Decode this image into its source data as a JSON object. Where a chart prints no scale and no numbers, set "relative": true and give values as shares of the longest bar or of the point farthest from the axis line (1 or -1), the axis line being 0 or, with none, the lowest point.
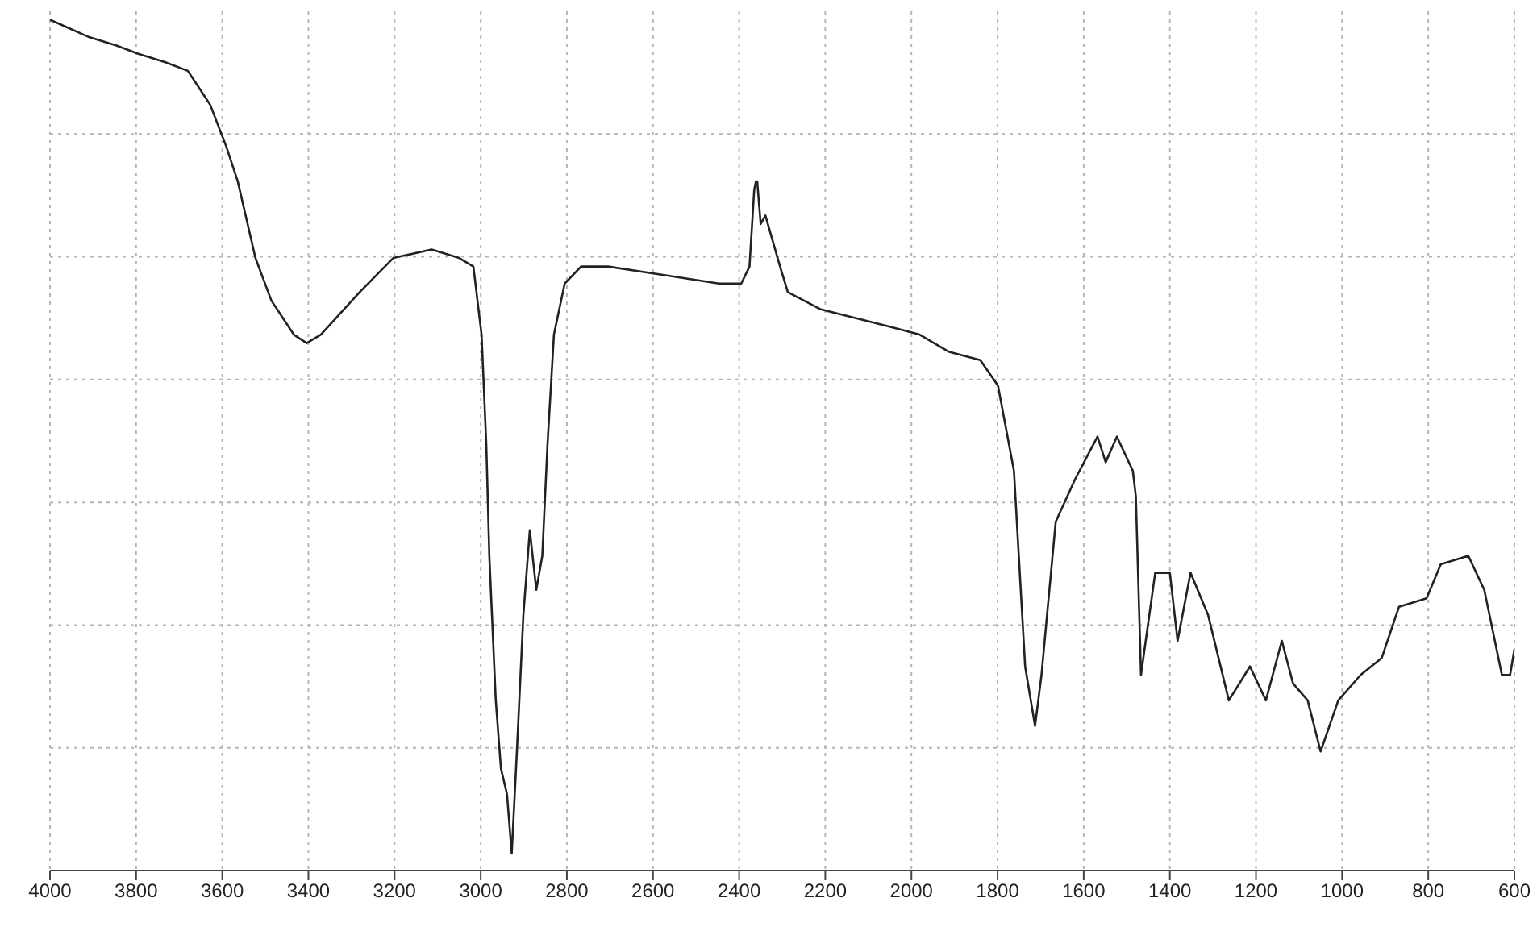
{
  "chart_data": {
    "type": "line",
    "relative": true,
    "color": "#222222",
    "marker": "none",
    "grid": true,
    "tick_labels": "x",
    "xlim": [
      4000,
      600
    ],
    "xticks": [
      4000,
      3800,
      3600,
      3400,
      3200,
      3000,
      2800,
      2600,
      2400,
      2200,
      2000,
      1800,
      1600,
      1400,
      1200,
      1000,
      800,
      600
    ],
    "x": [
      4000,
      3911,
      3847,
      3795,
      3732,
      3680,
      3628,
      3590,
      3564,
      3523,
      3486,
      3434,
      3404,
      3371,
      3281,
      3203,
      3114,
      3050,
      3017,
      2998,
      2987,
      2980,
      2965,
      2953,
      2939,
      2928,
      2916,
      2901,
      2886,
      2871,
      2857,
      2845,
      2830,
      2805,
      2767,
      2704,
      2574,
      2447,
      2395,
      2376,
      2365,
      2361,
      2358,
      2350,
      2339,
      2305,
      2287,
      2212,
      2056,
      1981,
      1914,
      1840,
      1799,
      1762,
      1736,
      1713,
      1698,
      1665,
      1620,
      1568,
      1549,
      1523,
      1486,
      1479,
      1467,
      1434,
      1400,
      1382,
      1352,
      1311,
      1263,
      1214,
      1177,
      1140,
      1114,
      1080,
      1050,
      1009,
      957,
      908,
      868,
      804,
      771,
      707,
      670,
      629,
      610,
      600
    ],
    "values": [
      1.0,
      0.98,
      0.97,
      0.96,
      0.95,
      0.94,
      0.9,
      0.85,
      0.81,
      0.72,
      0.67,
      0.63,
      0.62,
      0.63,
      0.68,
      0.72,
      0.73,
      0.72,
      0.71,
      0.63,
      0.5,
      0.37,
      0.2,
      0.12,
      0.09,
      0.02,
      0.14,
      0.3,
      0.4,
      0.33,
      0.37,
      0.5,
      0.63,
      0.69,
      0.71,
      0.71,
      0.7,
      0.69,
      0.69,
      0.71,
      0.8,
      0.81,
      0.81,
      0.76,
      0.77,
      0.71,
      0.68,
      0.66,
      0.64,
      0.63,
      0.61,
      0.6,
      0.57,
      0.47,
      0.24,
      0.17,
      0.23,
      0.41,
      0.46,
      0.51,
      0.48,
      0.51,
      0.47,
      0.44,
      0.23,
      0.35,
      0.35,
      0.27,
      0.35,
      0.3,
      0.2,
      0.24,
      0.2,
      0.27,
      0.22,
      0.2,
      0.14,
      0.2,
      0.23,
      0.25,
      0.31,
      0.32,
      0.36,
      0.37,
      0.33,
      0.23,
      0.23,
      0.26
    ]
  }
}
